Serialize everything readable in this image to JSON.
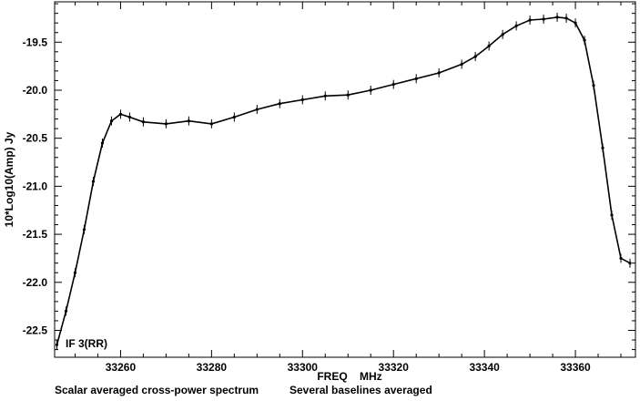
{
  "chart_data": {
    "type": "line",
    "xlabel": "FREQ    MHz",
    "ylabel": "10*Log10(Amp) Jy",
    "annotation": "IF 3(RR)",
    "caption_left": "Scalar averaged cross-power spectrum",
    "caption_right": "Several baselines averaged",
    "xlim": [
      33245.5,
      33373.2
    ],
    "ylim": [
      -22.78,
      -19.08
    ],
    "xticks": [
      33260,
      33280,
      33300,
      33320,
      33340,
      33360
    ],
    "xtick_labels": [
      "33260",
      "33280",
      "33300",
      "33320",
      "33340",
      "33360"
    ],
    "yticks": [
      -19.5,
      -20.0,
      -20.5,
      -21.0,
      -21.5,
      -22.0,
      -22.5
    ],
    "ytick_labels": [
      "-19.5",
      "-20.0",
      "-20.5",
      "-21.0",
      "-21.5",
      "-22.0",
      "-22.5"
    ],
    "error_bars": true,
    "line_color": "#000000",
    "series": [
      {
        "x": [
          33246,
          33248,
          33250,
          33252,
          33254,
          33256,
          33258,
          33260,
          33262,
          33265,
          33270,
          33275,
          33280,
          33285,
          33290,
          33295,
          33300,
          33305,
          33310,
          33315,
          33320,
          33325,
          33330,
          33335,
          33338,
          33341,
          33344,
          33347,
          33350,
          33353,
          33356,
          33358,
          33360,
          33362,
          33364,
          33366,
          33368,
          33370,
          33372
        ],
        "y": [
          -22.65,
          -22.3,
          -21.9,
          -21.45,
          -20.95,
          -20.55,
          -20.32,
          -20.25,
          -20.28,
          -20.33,
          -20.35,
          -20.32,
          -20.35,
          -20.28,
          -20.2,
          -20.14,
          -20.1,
          -20.06,
          -20.05,
          -20.0,
          -19.94,
          -19.88,
          -19.82,
          -19.73,
          -19.65,
          -19.54,
          -19.42,
          -19.33,
          -19.27,
          -19.26,
          -19.24,
          -19.25,
          -19.3,
          -19.48,
          -19.95,
          -20.6,
          -21.3,
          -21.75,
          -21.8
        ]
      }
    ]
  }
}
